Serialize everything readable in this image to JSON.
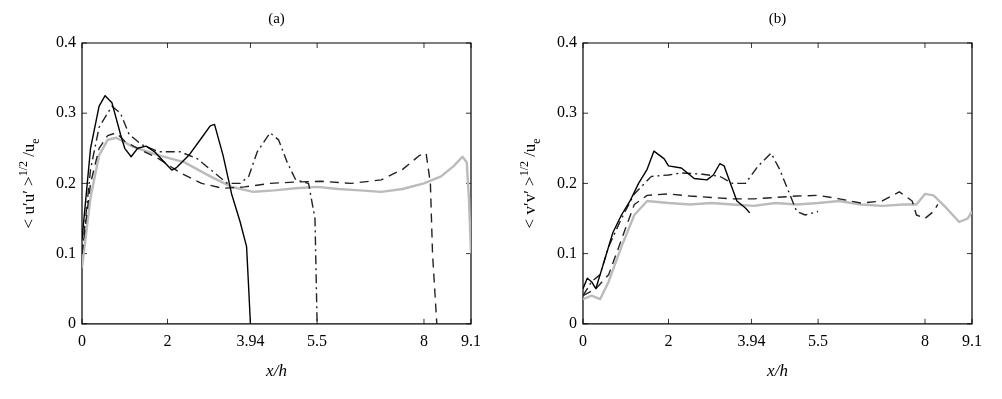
{
  "chart_data": [
    {
      "type": "line",
      "title": "(a)",
      "xlabel": "x/h",
      "ylabel": "< u′u′ >$^{1/2}$ /u$_{e}$",
      "xlim": [
        0,
        9.1
      ],
      "xticks": [
        0,
        2,
        3.94,
        5.5,
        8,
        9.1
      ],
      "ylim": [
        0,
        0.4
      ],
      "yticks": [
        0,
        0.1,
        0.2,
        0.3,
        0.4
      ],
      "grid": false,
      "legend": false,
      "marker": "none",
      "series": [
        {
          "color": "#000000",
          "line_style": "solid",
          "x": [
            0,
            0.2,
            0.4,
            0.54,
            0.7,
            0.9,
            1.0,
            1.15,
            1.3,
            1.5,
            1.7,
            1.9,
            2.1,
            2.2,
            2.5,
            2.8,
            3.0,
            3.1,
            3.3,
            3.5,
            3.7,
            3.85,
            3.9,
            3.94
          ],
          "values": [
            0.12,
            0.25,
            0.31,
            0.325,
            0.315,
            0.27,
            0.25,
            0.238,
            0.25,
            0.253,
            0.245,
            0.232,
            0.219,
            0.222,
            0.24,
            0.265,
            0.282,
            0.284,
            0.24,
            0.185,
            0.145,
            0.11,
            0.05,
            0
          ]
        },
        {
          "color": "#222222",
          "line_style": "dashdot",
          "x": [
            0,
            0.2,
            0.4,
            0.7,
            0.9,
            1.1,
            1.4,
            1.8,
            2.3,
            2.7,
            3.0,
            3.4,
            3.7,
            3.9,
            4.1,
            4.4,
            4.6,
            4.8,
            5.0,
            5.3,
            5.45,
            5.5
          ],
          "values": [
            0.1,
            0.22,
            0.28,
            0.31,
            0.3,
            0.27,
            0.255,
            0.245,
            0.245,
            0.235,
            0.22,
            0.2,
            0.2,
            0.21,
            0.245,
            0.272,
            0.262,
            0.23,
            0.205,
            0.2,
            0.15,
            0
          ]
        },
        {
          "color": "#222222",
          "line_style": "dashed",
          "x": [
            0,
            0.2,
            0.4,
            0.6,
            0.8,
            1.0,
            1.3,
            1.8,
            2.3,
            2.8,
            3.3,
            3.8,
            4.4,
            5.0,
            5.6,
            6.3,
            7.0,
            7.5,
            7.9,
            8.05,
            8.15,
            8.2,
            8.3
          ],
          "values": [
            0.1,
            0.2,
            0.25,
            0.268,
            0.272,
            0.26,
            0.25,
            0.235,
            0.215,
            0.2,
            0.193,
            0.195,
            0.2,
            0.202,
            0.203,
            0.2,
            0.205,
            0.22,
            0.24,
            0.243,
            0.2,
            0.1,
            0
          ]
        },
        {
          "color": "#bbbbbb",
          "line_style": "solid",
          "x": [
            0,
            0.2,
            0.4,
            0.6,
            0.8,
            1.2,
            1.8,
            2.4,
            3.0,
            3.5,
            4.0,
            4.5,
            5.0,
            5.5,
            6.0,
            6.5,
            7.0,
            7.5,
            8.0,
            8.4,
            8.7,
            8.9,
            9.0,
            9.05,
            9.1
          ],
          "values": [
            0.08,
            0.18,
            0.24,
            0.262,
            0.265,
            0.252,
            0.24,
            0.23,
            0.21,
            0.195,
            0.188,
            0.19,
            0.193,
            0.195,
            0.192,
            0.19,
            0.188,
            0.192,
            0.2,
            0.21,
            0.225,
            0.238,
            0.23,
            0.18,
            0.1
          ]
        }
      ]
    },
    {
      "type": "line",
      "title": "(b)",
      "xlabel": "x/h",
      "ylabel": "< v′v′ >$^{1/2}$ /u$_{e}$",
      "xlim": [
        0,
        9.1
      ],
      "xticks": [
        0,
        2,
        3.94,
        5.5,
        8,
        9.1
      ],
      "ylim": [
        0,
        0.4
      ],
      "yticks": [
        0,
        0.1,
        0.2,
        0.3,
        0.4
      ],
      "grid": false,
      "legend": false,
      "marker": "none",
      "series": [
        {
          "color": "#000000",
          "line_style": "solid",
          "x": [
            0,
            0.1,
            0.2,
            0.3,
            0.5,
            0.7,
            0.9,
            1.1,
            1.3,
            1.5,
            1.66,
            1.9,
            2.0,
            2.3,
            2.5,
            2.6,
            2.9,
            3.05,
            3.2,
            3.3,
            3.45,
            3.6,
            3.8,
            3.9
          ],
          "values": [
            0.05,
            0.065,
            0.06,
            0.05,
            0.09,
            0.13,
            0.155,
            0.175,
            0.2,
            0.22,
            0.246,
            0.235,
            0.225,
            0.222,
            0.212,
            0.207,
            0.205,
            0.212,
            0.228,
            0.225,
            0.2,
            0.175,
            0.165,
            0.158
          ]
        },
        {
          "color": "#222222",
          "line_style": "dashdot",
          "x": [
            0,
            0.2,
            0.4,
            0.6,
            0.9,
            1.2,
            1.6,
            2.0,
            2.3,
            2.8,
            3.2,
            3.5,
            3.8,
            4.1,
            4.4,
            4.6,
            4.8,
            5.0,
            5.2,
            5.5
          ],
          "values": [
            0.04,
            0.06,
            0.07,
            0.11,
            0.15,
            0.185,
            0.21,
            0.212,
            0.215,
            0.213,
            0.21,
            0.2,
            0.2,
            0.225,
            0.243,
            0.22,
            0.19,
            0.16,
            0.155,
            0.16
          ]
        },
        {
          "color": "#222222",
          "line_style": "dashed",
          "x": [
            0,
            0.3,
            0.6,
            0.9,
            1.2,
            1.5,
            2.0,
            2.5,
            3.0,
            3.5,
            4.0,
            4.5,
            5.0,
            5.5,
            6.0,
            6.5,
            7.0,
            7.4,
            7.7,
            7.8,
            8.0,
            8.2,
            8.3
          ],
          "values": [
            0.04,
            0.05,
            0.07,
            0.12,
            0.17,
            0.183,
            0.185,
            0.182,
            0.18,
            0.178,
            0.178,
            0.18,
            0.182,
            0.183,
            0.178,
            0.172,
            0.175,
            0.188,
            0.175,
            0.155,
            0.15,
            0.16,
            0.17
          ]
        },
        {
          "color": "#bbbbbb",
          "line_style": "solid",
          "x": [
            0,
            0.2,
            0.4,
            0.6,
            0.9,
            1.2,
            1.5,
            2.0,
            2.5,
            3.0,
            3.5,
            4.0,
            4.5,
            5.0,
            5.5,
            6.0,
            6.5,
            7.0,
            7.5,
            7.8,
            8.0,
            8.2,
            8.5,
            8.8,
            9.0,
            9.1
          ],
          "values": [
            0.035,
            0.04,
            0.035,
            0.06,
            0.11,
            0.155,
            0.175,
            0.172,
            0.17,
            0.172,
            0.17,
            0.168,
            0.172,
            0.17,
            0.172,
            0.175,
            0.17,
            0.168,
            0.17,
            0.17,
            0.185,
            0.183,
            0.165,
            0.145,
            0.15,
            0.16
          ]
        }
      ]
    }
  ]
}
